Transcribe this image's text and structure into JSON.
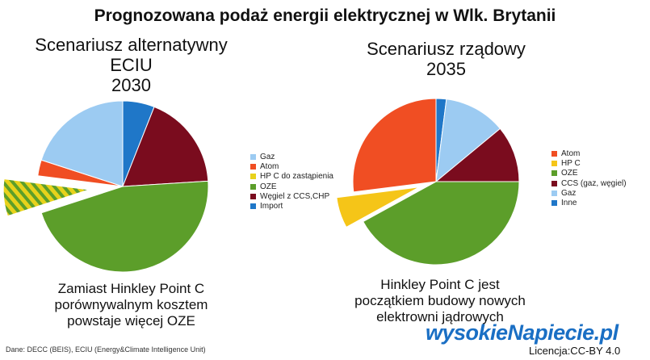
{
  "title": "Prognozowana podaż energii elektrycznej w Wlk. Brytanii",
  "source": "Dane: DECC (BEIS), ECIU (Energy&Climate Intelligence Unit)",
  "brand": "wysokieNapiecie.pl",
  "license": "Licencja:CC-BY 4.0",
  "chart_data": [
    {
      "type": "pie",
      "title_lines": [
        "Scenariusz alternatywny",
        "ECIU",
        "2030"
      ],
      "caption_lines": [
        "Zamiast Hinkley Point C",
        "porównywalnym kosztem",
        "powstaje więcej OZE"
      ],
      "slices": [
        {
          "label": "Import",
          "value": 6,
          "color": "#1f77c8"
        },
        {
          "label": "Węgiel z CCS,CHP",
          "value": 18,
          "color": "#7a0c1e"
        },
        {
          "label": "OZE",
          "value": 46,
          "color": "#5c9e2a"
        },
        {
          "label": "HP C do zastąpienia",
          "value": 7,
          "color": "#e8d21b",
          "exploded": true,
          "hatched": true
        },
        {
          "label": "Atom",
          "value": 3,
          "color": "#f04e23"
        },
        {
          "label": "Gaz",
          "value": 20,
          "color": "#9ccbf2"
        }
      ],
      "legend": [
        "Gaz",
        "Atom",
        "HP C do zastąpienia",
        "OZE",
        "Węgiel z CCS,CHP",
        "Import"
      ],
      "legend_colors": [
        "#9ccbf2",
        "#f04e23",
        "#e8d21b",
        "#5c9e2a",
        "#7a0c1e",
        "#1f77c8"
      ]
    },
    {
      "type": "pie",
      "title_lines": [
        "Scenariusz rządowy",
        "2035"
      ],
      "caption_lines": [
        "Hinkley Point C jest",
        "początkiem budowy nowych",
        "elektrowni jądrowych"
      ],
      "slices": [
        {
          "label": "Inne",
          "value": 2,
          "color": "#1f77c8"
        },
        {
          "label": "Gaz",
          "value": 12,
          "color": "#9ccbf2"
        },
        {
          "label": "CCS (gaz, węgiel)",
          "value": 11,
          "color": "#7a0c1e"
        },
        {
          "label": "OZE",
          "value": 42,
          "color": "#5c9e2a"
        },
        {
          "label": "HP C",
          "value": 6,
          "color": "#f5c518",
          "exploded": true
        },
        {
          "label": "Atom",
          "value": 27,
          "color": "#f04e23"
        }
      ],
      "legend": [
        "Atom",
        "HP C",
        "OZE",
        "CCS (gaz, węgiel)",
        "Gaz",
        "Inne"
      ],
      "legend_colors": [
        "#f04e23",
        "#f5c518",
        "#5c9e2a",
        "#7a0c1e",
        "#9ccbf2",
        "#1f77c8"
      ]
    }
  ]
}
